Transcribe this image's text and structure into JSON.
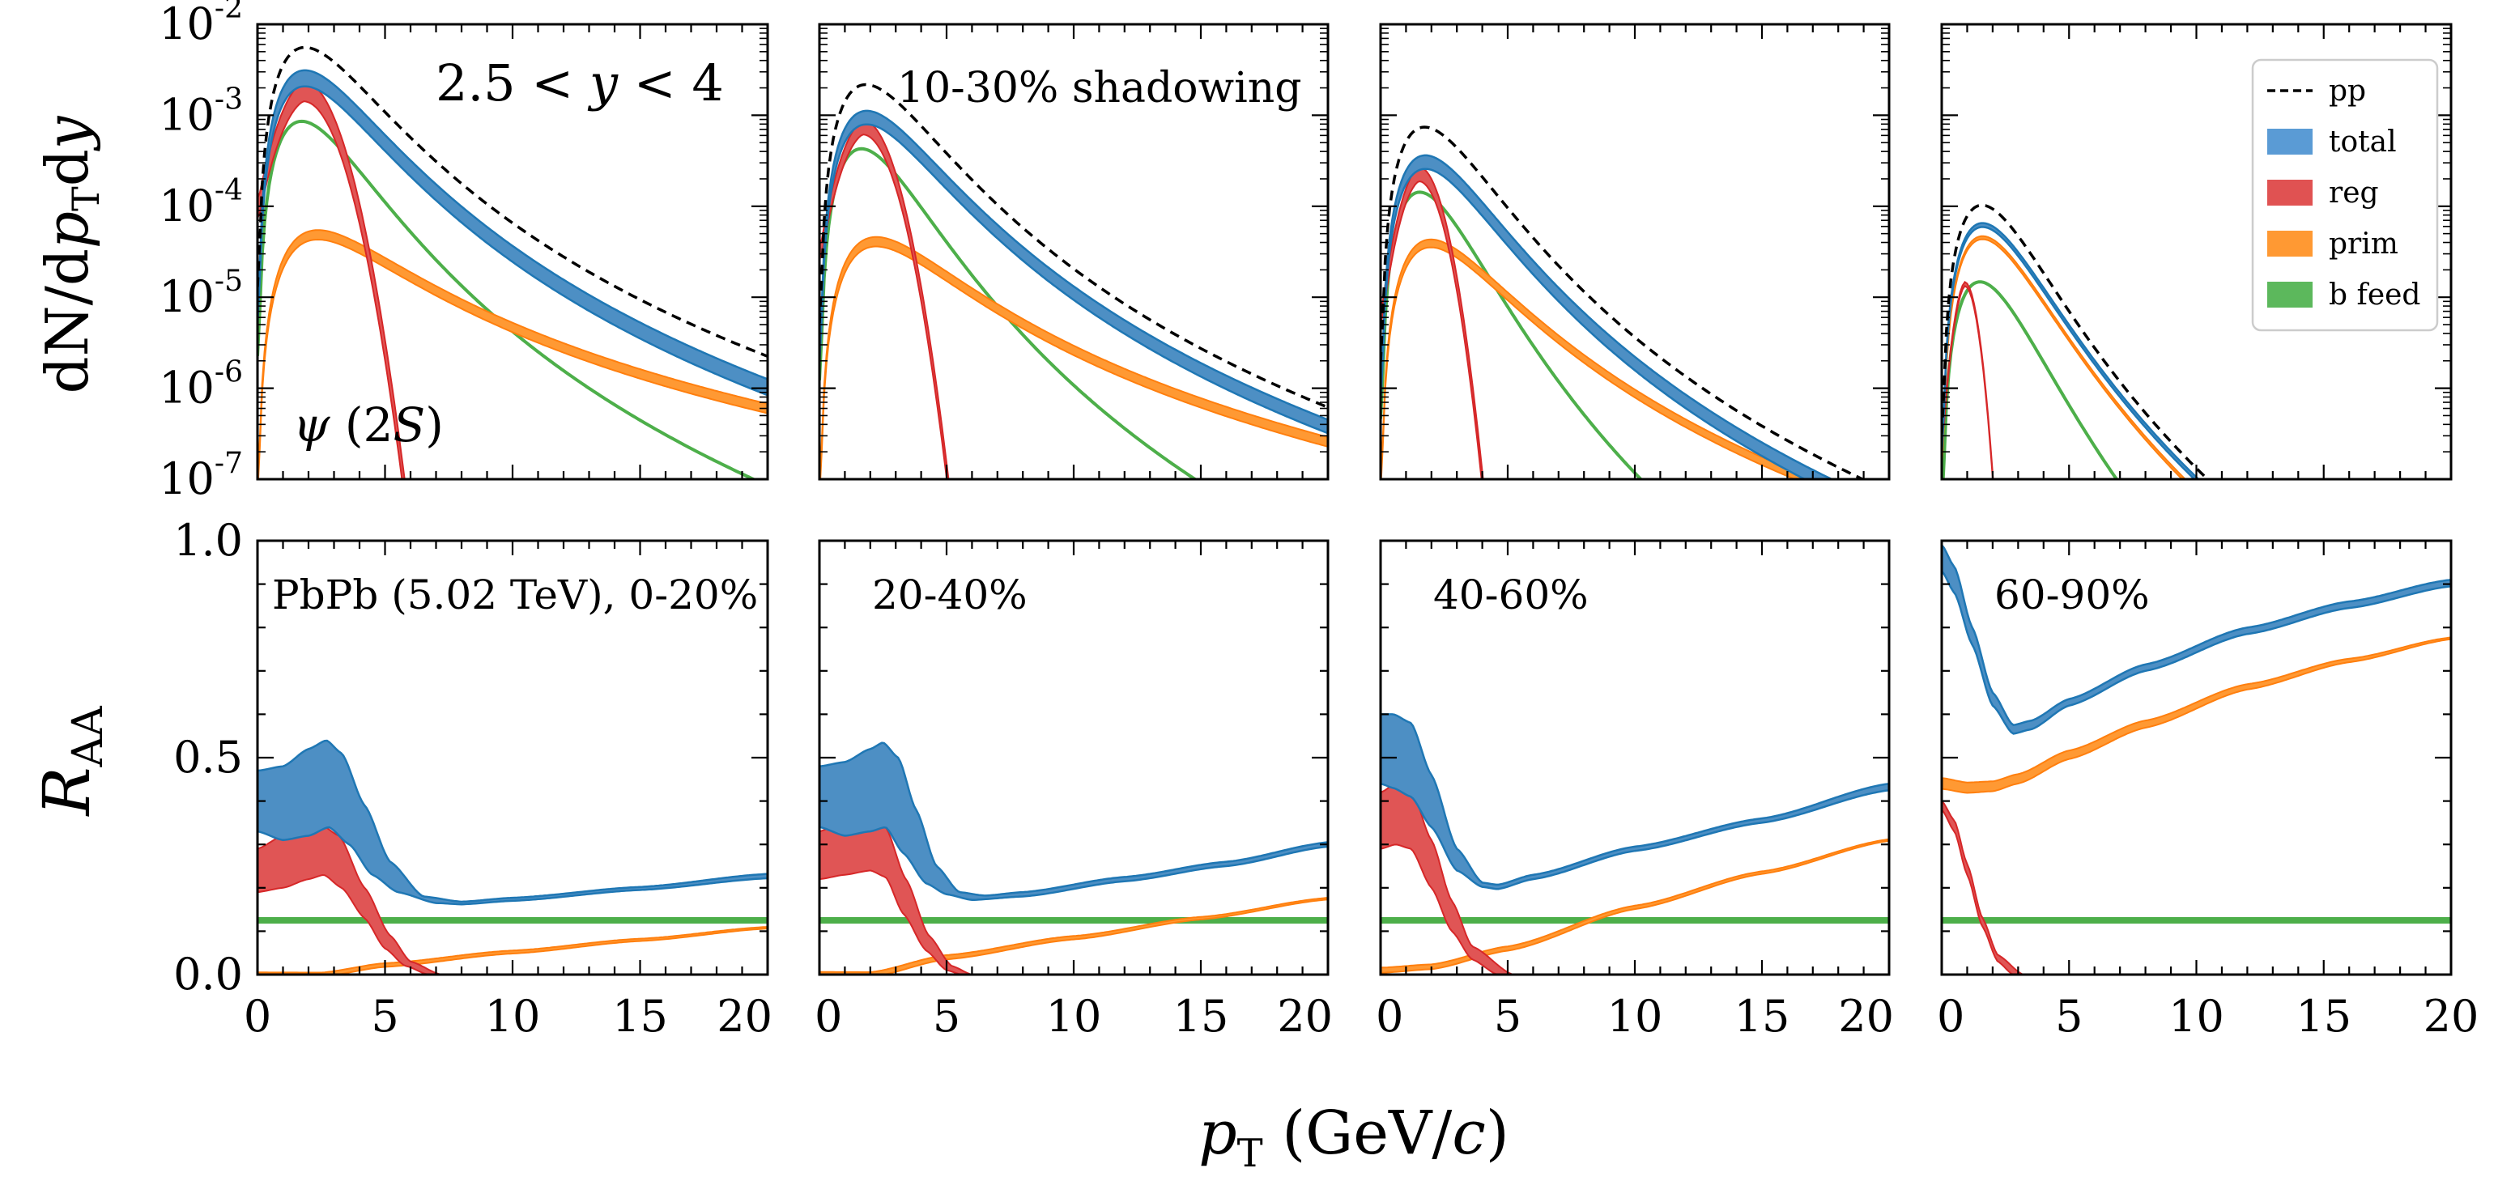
{
  "chart_data": {
    "type": "line",
    "xlabel": "p_T (GeV/c)",
    "xlabel_parts": [
      "p",
      "T",
      " (GeV/",
      "c",
      ")"
    ],
    "xlim": [
      0,
      20
    ],
    "x_ticks": [
      "0",
      "5",
      "10",
      "15",
      "20"
    ],
    "top_row": {
      "ylabel": "dN/dp_T dy",
      "ylabel_parts": [
        "dN/d",
        "p",
        "T",
        "d",
        "y"
      ],
      "yscale": "log",
      "ylim": [
        1e-07,
        0.01
      ],
      "y_ticks": [
        {
          "base": "10",
          "exp": "-2"
        },
        {
          "base": "10",
          "exp": "-3"
        },
        {
          "base": "10",
          "exp": "-4"
        },
        {
          "base": "10",
          "exp": "-5"
        },
        {
          "base": "10",
          "exp": "-6"
        },
        {
          "base": "10",
          "exp": "-7"
        }
      ],
      "series_params": {
        "pp": {
          "A": [
            0.0052,
            0.002,
            0.00065,
            8e-05
          ],
          "peak": 2.3,
          "k": [
            3.6,
            3.7,
            4.0,
            4.6
          ]
        },
        "total": {
          "A": [
            0.0026,
            0.00095,
            0.00031,
            5.5e-05
          ],
          "peak": [
            1.9,
            2.0,
            1.8,
            2.1
          ],
          "k": [
            3.6,
            3.6,
            3.9,
            4.5
          ],
          "band": [
            0.2,
            0.17,
            0.17,
            0.05
          ]
        },
        "reg": {
          "A": [
            0.0019,
            0.00075,
            0.00023,
            1.4e-05
          ],
          "center": [
            1.8,
            1.7,
            1.5,
            0.9
          ],
          "width": [
            1.25,
            1.12,
            0.9,
            0.5
          ],
          "band": [
            0.25,
            0.18,
            0.18,
            0.05
          ]
        },
        "prim": {
          "A": [
            2.8e-05,
            2.8e-05,
            2.5e-05,
            3.8e-05
          ],
          "peak": [
            4.6,
            3.8,
            3.4,
            2.2
          ],
          "k": [
            2.6,
            2.8,
            3.3,
            4.5
          ],
          "band": [
            0.12,
            0.12,
            0.1,
            0.04
          ]
        },
        "b_feed": {
          "A": [
            0.00065,
            0.00026,
            8.5e-05,
            1.05e-05
          ],
          "peak": [
            2.6,
            2.8,
            2.6,
            2.3
          ],
          "k": [
            4.0,
            4.3,
            4.8,
            5.0
          ]
        }
      },
      "panels": [
        {
          "annotations": [
            {
              "kind": "math",
              "text": "2.5 < y < 4",
              "parts": [
                "2.5 < ",
                "y",
                " < 4"
              ]
            },
            {
              "kind": "psi",
              "text": "ψ (2S)",
              "parts": [
                "ψ",
                " (2",
                "S",
                ")"
              ]
            }
          ]
        },
        {
          "annotations": [
            {
              "kind": "plain",
              "text": "10-30% shadowing"
            }
          ]
        },
        {
          "annotations": []
        },
        {
          "annotations": []
        }
      ]
    },
    "bottom_row": {
      "ylabel": "R_AA",
      "ylabel_parts": [
        "R",
        "AA"
      ],
      "yscale": "linear",
      "ylim": [
        0.0,
        1.0
      ],
      "y_ticks": [
        "1.0",
        "0.5",
        "0.0"
      ],
      "panels": [
        {
          "label": "PbPb (5.02 TeV), 0-20%",
          "total_low": [
            [
              0,
              0.33
            ],
            [
              1,
              0.31
            ],
            [
              2,
              0.32
            ],
            [
              2.8,
              0.34
            ],
            [
              3.6,
              0.3
            ],
            [
              4.5,
              0.23
            ],
            [
              5.5,
              0.19
            ],
            [
              7,
              0.165
            ],
            [
              8,
              0.162
            ],
            [
              10,
              0.17
            ],
            [
              15,
              0.195
            ],
            [
              20,
              0.222
            ]
          ],
          "total_high": [
            [
              0,
              0.47
            ],
            [
              1,
              0.48
            ],
            [
              2,
              0.52
            ],
            [
              2.7,
              0.54
            ],
            [
              3.3,
              0.51
            ],
            [
              4.2,
              0.39
            ],
            [
              5.2,
              0.26
            ],
            [
              6.5,
              0.18
            ],
            [
              8,
              0.168
            ],
            [
              10,
              0.177
            ],
            [
              15,
              0.202
            ],
            [
              20,
              0.232
            ]
          ],
          "reg_low": [
            [
              0,
              0.19
            ],
            [
              1,
              0.2
            ],
            [
              2,
              0.22
            ],
            [
              2.6,
              0.23
            ],
            [
              3.3,
              0.2
            ],
            [
              4.2,
              0.13
            ],
            [
              5,
              0.06
            ],
            [
              5.8,
              0.02
            ],
            [
              6.7,
              0.0
            ]
          ],
          "reg_high": [
            [
              0,
              0.29
            ],
            [
              1,
              0.32
            ],
            [
              2,
              0.34
            ],
            [
              2.5,
              0.345
            ],
            [
              3.2,
              0.32
            ],
            [
              4.2,
              0.2
            ],
            [
              5.2,
              0.09
            ],
            [
              6,
              0.03
            ],
            [
              7.2,
              0.0
            ]
          ],
          "prim": [
            [
              2.5,
              0.0
            ],
            [
              5,
              0.022
            ],
            [
              10,
              0.052
            ],
            [
              15,
              0.08
            ],
            [
              20,
              0.108
            ]
          ],
          "prim_band": [
            0.003,
            0.003
          ],
          "b_feed": 0.125
        },
        {
          "label": "20-40%",
          "total_low": [
            [
              0,
              0.34
            ],
            [
              1,
              0.32
            ],
            [
              2,
              0.33
            ],
            [
              2.6,
              0.34
            ],
            [
              3.3,
              0.28
            ],
            [
              4.2,
              0.21
            ],
            [
              5,
              0.185
            ],
            [
              6,
              0.172
            ],
            [
              8,
              0.18
            ],
            [
              12,
              0.215
            ],
            [
              16,
              0.25
            ],
            [
              20,
              0.295
            ]
          ],
          "total_high": [
            [
              0,
              0.48
            ],
            [
              1,
              0.49
            ],
            [
              2,
              0.52
            ],
            [
              2.5,
              0.535
            ],
            [
              3.1,
              0.5
            ],
            [
              3.8,
              0.38
            ],
            [
              4.6,
              0.25
            ],
            [
              5.5,
              0.19
            ],
            [
              6.5,
              0.182
            ],
            [
              8,
              0.19
            ],
            [
              12,
              0.225
            ],
            [
              16,
              0.26
            ],
            [
              20,
              0.305
            ]
          ],
          "reg_low": [
            [
              0,
              0.22
            ],
            [
              1,
              0.23
            ],
            [
              2,
              0.24
            ],
            [
              2.6,
              0.225
            ],
            [
              3.3,
              0.14
            ],
            [
              4.2,
              0.055
            ],
            [
              5,
              0.01
            ],
            [
              5.6,
              0.0
            ]
          ],
          "reg_high": [
            [
              0,
              0.33
            ],
            [
              1,
              0.355
            ],
            [
              2,
              0.36
            ],
            [
              2.6,
              0.34
            ],
            [
              3.4,
              0.22
            ],
            [
              4.3,
              0.09
            ],
            [
              5.2,
              0.02
            ],
            [
              6,
              0.0
            ]
          ],
          "prim": [
            [
              2,
              0.0
            ],
            [
              5,
              0.04
            ],
            [
              10,
              0.085
            ],
            [
              15,
              0.13
            ],
            [
              20,
              0.175
            ]
          ],
          "prim_band": [
            0.004,
            0.004
          ],
          "b_feed": 0.125
        },
        {
          "label": "40-60%",
          "total_low": [
            [
              0,
              0.44
            ],
            [
              0.5,
              0.43
            ],
            [
              1.2,
              0.41
            ],
            [
              2,
              0.34
            ],
            [
              3,
              0.24
            ],
            [
              4,
              0.202
            ],
            [
              4.6,
              0.197
            ],
            [
              6,
              0.22
            ],
            [
              10,
              0.285
            ],
            [
              15,
              0.35
            ],
            [
              20,
              0.425
            ]
          ],
          "total_high": [
            [
              0,
              0.6
            ],
            [
              0.5,
              0.6
            ],
            [
              1.2,
              0.58
            ],
            [
              2,
              0.46
            ],
            [
              3,
              0.29
            ],
            [
              4,
              0.212
            ],
            [
              4.6,
              0.207
            ],
            [
              6,
              0.23
            ],
            [
              10,
              0.295
            ],
            [
              15,
              0.36
            ],
            [
              20,
              0.44
            ]
          ],
          "reg_low": [
            [
              0,
              0.29
            ],
            [
              0.6,
              0.3
            ],
            [
              1.2,
              0.29
            ],
            [
              2,
              0.2
            ],
            [
              2.8,
              0.1
            ],
            [
              3.6,
              0.035
            ],
            [
              4.6,
              0.0
            ]
          ],
          "reg_high": [
            [
              0,
              0.42
            ],
            [
              0.6,
              0.44
            ],
            [
              1.2,
              0.43
            ],
            [
              2,
              0.31
            ],
            [
              2.8,
              0.17
            ],
            [
              3.6,
              0.065
            ],
            [
              5.2,
              0.0
            ]
          ],
          "prim": [
            [
              0,
              0.01
            ],
            [
              2,
              0.018
            ],
            [
              5,
              0.06
            ],
            [
              10,
              0.155
            ],
            [
              15,
              0.235
            ],
            [
              20,
              0.31
            ]
          ],
          "prim_band": [
            0.004,
            0.004
          ],
          "b_feed": 0.125
        },
        {
          "label": "60-90%",
          "total_low": [
            [
              0,
              0.93
            ],
            [
              0.5,
              0.88
            ],
            [
              1.2,
              0.76
            ],
            [
              2,
              0.62
            ],
            [
              2.8,
              0.555
            ],
            [
              3.5,
              0.565
            ],
            [
              5,
              0.62
            ],
            [
              8,
              0.7
            ],
            [
              12,
              0.785
            ],
            [
              16,
              0.845
            ],
            [
              20,
              0.895
            ]
          ],
          "total_high": [
            [
              0,
              0.99
            ],
            [
              0.5,
              0.94
            ],
            [
              1.2,
              0.8
            ],
            [
              2,
              0.65
            ],
            [
              2.8,
              0.575
            ],
            [
              3.5,
              0.585
            ],
            [
              5,
              0.635
            ],
            [
              8,
              0.715
            ],
            [
              12,
              0.8
            ],
            [
              16,
              0.86
            ],
            [
              20,
              0.91
            ]
          ],
          "reg_low": [
            [
              0,
              0.38
            ],
            [
              0.5,
              0.33
            ],
            [
              1,
              0.23
            ],
            [
              1.6,
              0.11
            ],
            [
              2.2,
              0.03
            ],
            [
              2.8,
              0.0
            ]
          ],
          "reg_high": [
            [
              0,
              0.4
            ],
            [
              0.5,
              0.355
            ],
            [
              1,
              0.255
            ],
            [
              1.6,
              0.13
            ],
            [
              2.2,
              0.045
            ],
            [
              3.2,
              0.0
            ]
          ],
          "prim": [
            [
              0,
              0.445
            ],
            [
              1,
              0.435
            ],
            [
              2,
              0.438
            ],
            [
              3,
              0.455
            ],
            [
              5,
              0.51
            ],
            [
              8,
              0.58
            ],
            [
              12,
              0.665
            ],
            [
              16,
              0.725
            ],
            [
              20,
              0.775
            ]
          ],
          "prim_band": [
            0.015,
            0.006
          ],
          "b_feed": 0.125
        }
      ]
    },
    "legend": {
      "position": "upper-right of top-right panel",
      "entries": [
        {
          "label": "pp",
          "style": "dashed",
          "color": "#000000"
        },
        {
          "label": "total",
          "style": "patch",
          "color": "#5a9bd5"
        },
        {
          "label": "reg",
          "style": "patch",
          "color": "#e05252"
        },
        {
          "label": "prim",
          "style": "patch",
          "color": "#ff9933"
        },
        {
          "label": "b feed",
          "style": "patch",
          "color": "#5cb85c"
        }
      ]
    },
    "colors": {
      "total_fill": "#4d8fc4",
      "total_edge": "#1f77b4",
      "reg_fill": "#e05555",
      "reg_edge": "#d62728",
      "prim_fill": "#ff9933",
      "prim_edge": "#ff7f0e",
      "b_feed": "#4daf4a",
      "pp": "#000000"
    }
  }
}
